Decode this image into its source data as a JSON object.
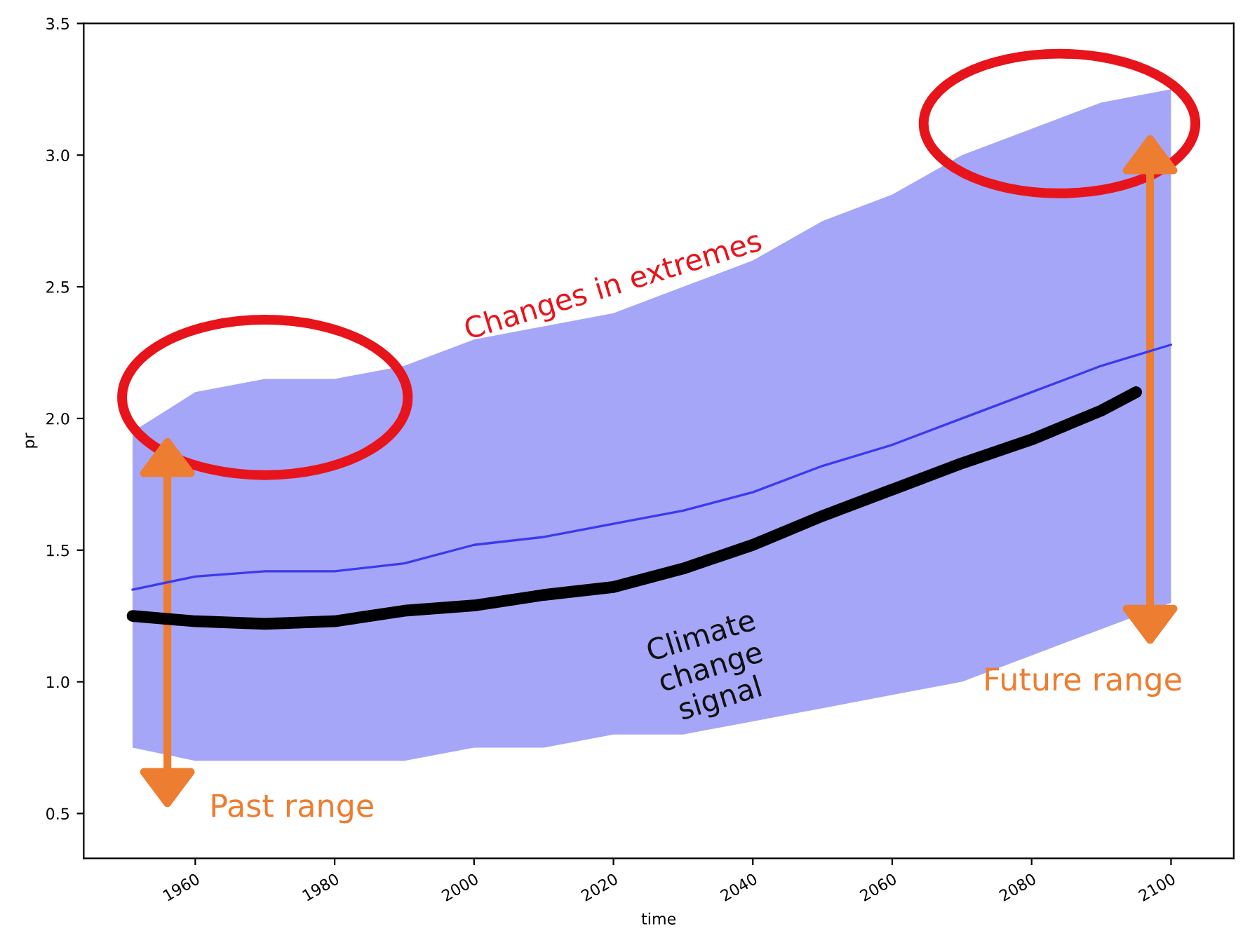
{
  "chart_data": {
    "type": "line",
    "xlabel": "time",
    "ylabel": "pr",
    "xlim": [
      1944,
      2109
    ],
    "xticks": [
      1960,
      1980,
      2000,
      2020,
      2040,
      2060,
      2080,
      2100
    ],
    "ylim": [
      0.33,
      3.5
    ],
    "yticks": [
      0.5,
      {
        "value": 1,
        "label": "1.0"
      },
      1.5,
      {
        "value": 2,
        "label": "2.0"
      },
      2.5,
      {
        "value": 3,
        "label": "3.0"
      },
      3.5
    ],
    "grid": false,
    "legend": false,
    "marker": "none",
    "series": [
      {
        "color": "#3a3af0",
        "x": [
          1951,
          1960,
          1970,
          1980,
          1990,
          2000,
          2010,
          2020,
          2030,
          2040,
          2050,
          2060,
          2070,
          2080,
          2090,
          2100
        ],
        "values": [
          1.35,
          1.4,
          1.42,
          1.42,
          1.45,
          1.52,
          1.55,
          1.6,
          1.65,
          1.72,
          1.82,
          1.9,
          2.0,
          2.1,
          2.2,
          2.28
        ],
        "lower": [
          0.75,
          0.7,
          0.7,
          0.7,
          0.7,
          0.75,
          0.75,
          0.8,
          0.8,
          0.85,
          0.9,
          0.95,
          1.0,
          1.1,
          1.2,
          1.3
        ],
        "upper": [
          1.95,
          2.1,
          2.15,
          2.15,
          2.2,
          2.3,
          2.35,
          2.4,
          2.5,
          2.6,
          2.75,
          2.85,
          3.0,
          3.1,
          3.2,
          3.25
        ]
      },
      {
        "color": "#000000",
        "x": [
          1951,
          1960,
          1970,
          1980,
          1990,
          2000,
          2010,
          2020,
          2030,
          2040,
          2050,
          2060,
          2070,
          2080,
          2090,
          2095
        ],
        "values": [
          1.25,
          1.23,
          1.22,
          1.23,
          1.27,
          1.29,
          1.33,
          1.36,
          1.43,
          1.52,
          1.63,
          1.73,
          1.83,
          1.92,
          2.03,
          2.1
        ]
      }
    ],
    "annotations": [
      "Changes in extremes",
      "Climate\nchange\nsignal",
      "Past range",
      "Future range"
    ]
  }
}
